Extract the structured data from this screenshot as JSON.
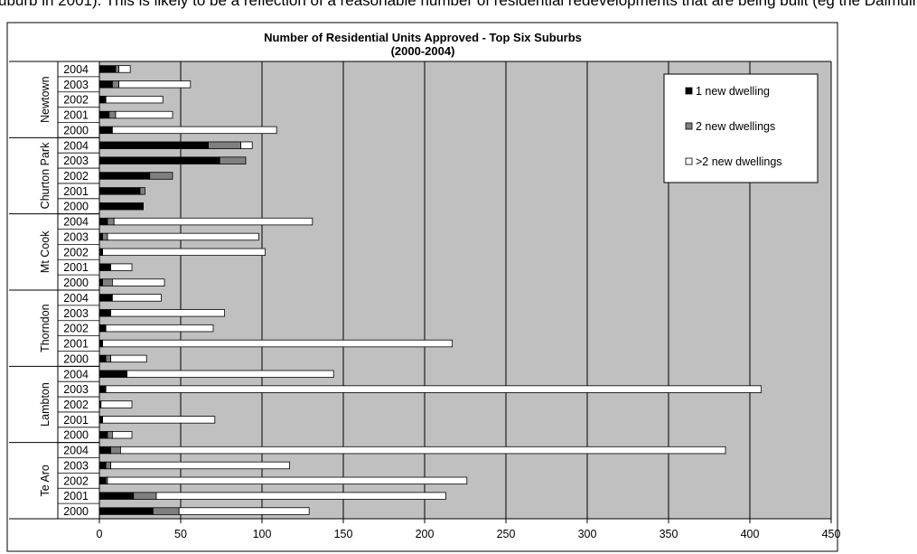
{
  "cut_text": "uburb in 2001). This is likely to be a reflection of a reasonable number of residential redevelopments that are being built (eg the Dalmuir",
  "chart_data": {
    "type": "bar",
    "orientation": "horizontal",
    "stacked": true,
    "title": "Number of Residential Units Approved - Top Six Suburbs",
    "subtitle": "(2000-2004)",
    "xlim": [
      0,
      450
    ],
    "xticks": [
      0,
      50,
      100,
      150,
      200,
      250,
      300,
      350,
      400,
      450
    ],
    "grid": "vertical",
    "legend_position": "top-right",
    "colors": {
      "plot_bg": "#c0c0c0",
      "one": "#000000",
      "two": "#808080",
      "more": "#ffffff"
    },
    "series": [
      {
        "key": "one",
        "name": "1 new dwelling"
      },
      {
        "key": "two",
        "name": "2 new dwellings"
      },
      {
        "key": "more",
        "name": ">2 new dwellings"
      }
    ],
    "groups": [
      {
        "suburb": "Newtown",
        "rows": [
          {
            "year": "2004",
            "values": [
              10,
              2,
              7
            ]
          },
          {
            "year": "2003",
            "values": [
              8,
              4,
              44
            ]
          },
          {
            "year": "2002",
            "values": [
              4,
              0,
              35
            ]
          },
          {
            "year": "2001",
            "values": [
              6,
              4,
              35
            ]
          },
          {
            "year": "2000",
            "values": [
              8,
              0,
              101
            ]
          }
        ]
      },
      {
        "suburb": "Churton Park",
        "rows": [
          {
            "year": "2004",
            "values": [
              67,
              20,
              7
            ]
          },
          {
            "year": "2003",
            "values": [
              74,
              16,
              0
            ]
          },
          {
            "year": "2002",
            "values": [
              31,
              14,
              0
            ]
          },
          {
            "year": "2001",
            "values": [
              25,
              3,
              0
            ]
          },
          {
            "year": "2000",
            "values": [
              27,
              0,
              0
            ]
          }
        ]
      },
      {
        "suburb": "Mt Cook",
        "rows": [
          {
            "year": "2004",
            "values": [
              5,
              4,
              122
            ]
          },
          {
            "year": "2003",
            "values": [
              2,
              3,
              93
            ]
          },
          {
            "year": "2002",
            "values": [
              2,
              0,
              100
            ]
          },
          {
            "year": "2001",
            "values": [
              7,
              0,
              13
            ]
          },
          {
            "year": "2000",
            "values": [
              2,
              6,
              32
            ]
          }
        ]
      },
      {
        "suburb": "Thorndon",
        "rows": [
          {
            "year": "2004",
            "values": [
              8,
              0,
              30
            ]
          },
          {
            "year": "2003",
            "values": [
              7,
              0,
              70
            ]
          },
          {
            "year": "2002",
            "values": [
              4,
              0,
              66
            ]
          },
          {
            "year": "2001",
            "values": [
              2,
              0,
              215
            ]
          },
          {
            "year": "2000",
            "values": [
              4,
              3,
              22
            ]
          }
        ]
      },
      {
        "suburb": "Lambton",
        "rows": [
          {
            "year": "2004",
            "values": [
              17,
              0,
              127
            ]
          },
          {
            "year": "2003",
            "values": [
              4,
              0,
              403
            ]
          },
          {
            "year": "2002",
            "values": [
              1,
              0,
              19
            ]
          },
          {
            "year": "2001",
            "values": [
              2,
              0,
              69
            ]
          },
          {
            "year": "2000",
            "values": [
              5,
              3,
              12
            ]
          }
        ]
      },
      {
        "suburb": "Te Aro",
        "rows": [
          {
            "year": "2004",
            "values": [
              7,
              6,
              372
            ]
          },
          {
            "year": "2003",
            "values": [
              4,
              3,
              110
            ]
          },
          {
            "year": "2002",
            "values": [
              4,
              1,
              221
            ]
          },
          {
            "year": "2001",
            "values": [
              21,
              14,
              178
            ]
          },
          {
            "year": "2000",
            "values": [
              33,
              16,
              80
            ]
          }
        ]
      }
    ]
  }
}
